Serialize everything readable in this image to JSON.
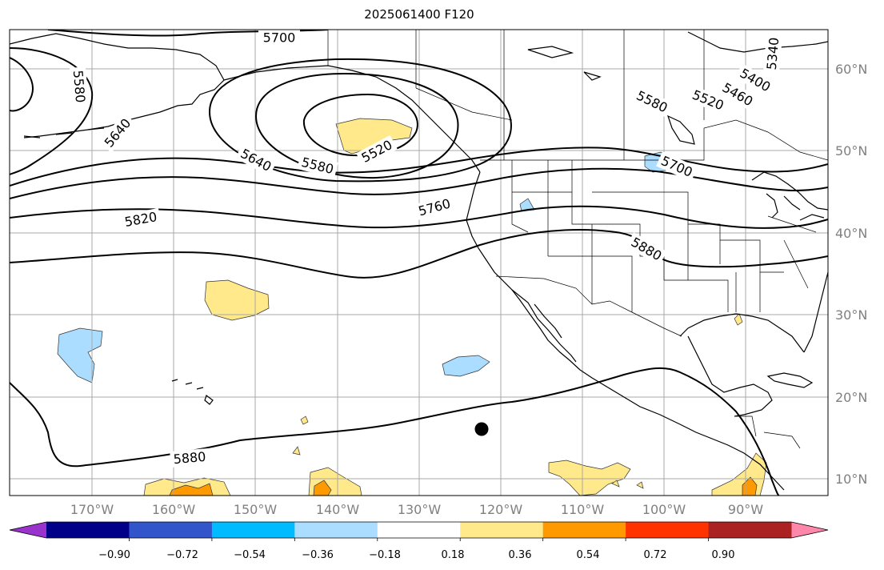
{
  "title": "2025061400 F120",
  "lon_labels": [
    "170°W",
    "160°W",
    "150°W",
    "140°W",
    "130°W",
    "120°W",
    "110°W",
    "100°W",
    "90°W"
  ],
  "lat_labels": [
    "60°N",
    "50°N",
    "40°N",
    "30°N",
    "20°N",
    "10°N"
  ],
  "contour_labels": [
    "5700",
    "5580",
    "5640",
    "5640",
    "5580",
    "5520",
    "5580",
    "5520",
    "5400",
    "5460",
    "5340",
    "5700",
    "5760",
    "5820",
    "5880",
    "5880"
  ],
  "colorbar": {
    "colors": [
      "#9933cc",
      "#000088",
      "#3355cc",
      "#00bbff",
      "#aaddff",
      "#ffffff",
      "#ffe98a",
      "#ff9900",
      "#ff3300",
      "#aa2222",
      "#ff88aa"
    ],
    "labels": [
      "−0.90",
      "−0.72",
      "−0.54",
      "−0.36",
      "−0.18",
      "0.18",
      "0.36",
      "0.54",
      "0.72",
      "0.90"
    ]
  },
  "marker": {
    "lon": -122.5,
    "lat": 16.0
  }
}
